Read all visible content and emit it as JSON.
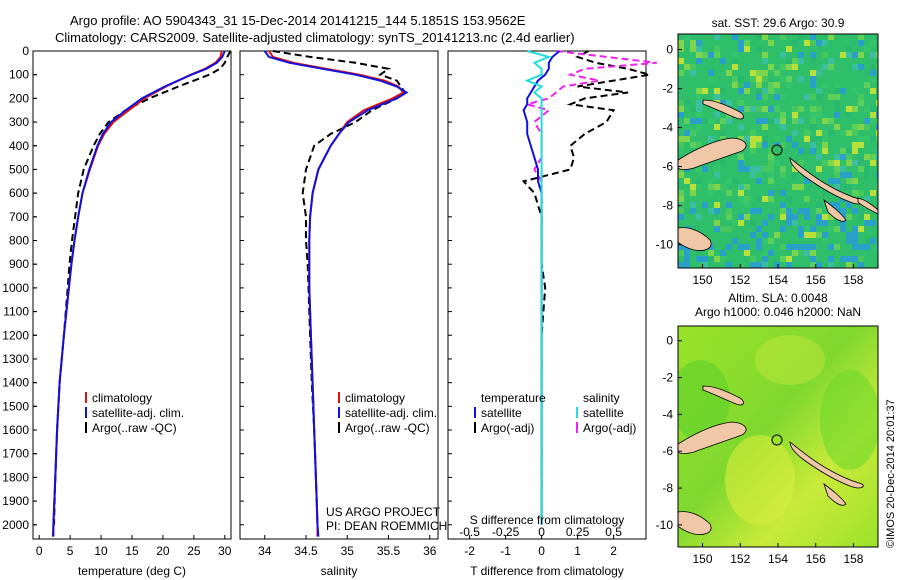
{
  "title": {
    "line1": "Argo profile: AO 5904343_31 15-Dec-2014 20141215_144 5.1851S 153.9562E",
    "line2": "Climatology: CARS2009. Satellite-adjusted climatology: synTS_20141213.nc (2.4d earlier)"
  },
  "depth_ticks": [
    "0",
    "100",
    "200",
    "300",
    "400",
    "500",
    "600",
    "700",
    "800",
    "900",
    "1000",
    "1100",
    "1200",
    "1300",
    "1400",
    "1500",
    "1600",
    "1700",
    "1800",
    "1900",
    "2000"
  ],
  "credits": {
    "project": "US ARGO PROJECT",
    "pi": "PI: DEAN ROEMMICH"
  },
  "watermark": "©IMOS 20-Dec-2014 20:01:37",
  "legend_temp": {
    "items": [
      "climatology",
      "satellite-adj. clim.",
      "Argo(..raw -QC)"
    ]
  },
  "legend_sal": {
    "items": [
      "climatology",
      "satellite-adj. clim.",
      "Argo(..raw -QC)"
    ]
  },
  "legend_diff": {
    "temp_header": "temperature",
    "sal_header": "salinity",
    "temp_items": [
      "satellite",
      "Argo(-adj)"
    ],
    "sal_items": [
      "satellite",
      "Argo(-adj)"
    ]
  },
  "colors": {
    "climatology": "#dd1111",
    "satellite": "#1111dd",
    "argo": "#000000",
    "sal_satellite": "#22dddd",
    "sal_argo": "#ee22ee",
    "land": "#f0c8a8"
  },
  "map_sst": {
    "title": "sat. SST: 29.6 Argo: 30.9",
    "xticks": [
      "150",
      "152",
      "154",
      "156",
      "158"
    ],
    "yticks": [
      "0",
      "-2",
      "-4",
      "-6",
      "-8",
      "-10"
    ]
  },
  "map_sla": {
    "title_line1": "Altim. SLA: 0.0048",
    "title_line2": "Argo h1000: 0.046 h2000: NaN",
    "xticks": [
      "150",
      "152",
      "154",
      "156",
      "158"
    ],
    "yticks": [
      "0",
      "-2",
      "-4",
      "-6",
      "-8",
      "-10"
    ]
  },
  "chart_data": [
    {
      "type": "line",
      "name": "temperature profile",
      "xlabel": "temperature (deg C)",
      "xlim": [
        -1,
        31
      ],
      "ylim": [
        2060,
        0
      ],
      "xticks": [
        "0",
        "5",
        "10",
        "15",
        "20",
        "25",
        "30"
      ],
      "depth": [
        0,
        25,
        50,
        75,
        100,
        150,
        200,
        250,
        300,
        350,
        400,
        500,
        600,
        700,
        800,
        900,
        1000,
        1200,
        1400,
        1600,
        1800,
        2000,
        2050
      ],
      "series": [
        {
          "name": "climatology",
          "values": [
            29.5,
            29.3,
            28.5,
            26.8,
            24.5,
            20.5,
            17.0,
            14.5,
            12.0,
            10.5,
            9.5,
            8.2,
            7.0,
            6.3,
            5.7,
            5.2,
            4.8,
            4.0,
            3.3,
            2.9,
            2.6,
            2.3,
            2.2
          ]
        },
        {
          "name": "satellite-adj. clim.",
          "values": [
            30.0,
            29.6,
            28.7,
            27.0,
            24.6,
            20.3,
            16.6,
            14.0,
            11.6,
            10.3,
            9.4,
            8.1,
            7.0,
            6.3,
            5.7,
            5.2,
            4.8,
            4.0,
            3.3,
            2.9,
            2.6,
            2.3,
            2.3
          ]
        },
        {
          "name": "Argo(..raw -QC)",
          "values": [
            30.9,
            30.4,
            30.0,
            29.2,
            27.5,
            22.5,
            17.8,
            14.0,
            11.2,
            9.8,
            8.8,
            7.2,
            6.3,
            5.8,
            5.3,
            4.9,
            4.6,
            4.0,
            3.3,
            2.9,
            2.6,
            2.4
          ]
        }
      ]
    },
    {
      "type": "line",
      "name": "salinity profile",
      "xlabel": "salinity",
      "xlim": [
        33.7,
        36.1
      ],
      "ylim": [
        2060,
        0
      ],
      "xticks": [
        "34",
        "34.5",
        "35",
        "35.5",
        "36"
      ],
      "depth": [
        0,
        25,
        50,
        75,
        100,
        125,
        150,
        175,
        200,
        250,
        300,
        350,
        400,
        500,
        600,
        700,
        800,
        900,
        1000,
        1200,
        1400,
        1600,
        1800,
        2000,
        2050
      ],
      "series": [
        {
          "name": "climatology",
          "values": [
            34.05,
            34.1,
            34.35,
            34.75,
            35.15,
            35.45,
            35.62,
            35.68,
            35.55,
            35.2,
            35.0,
            34.9,
            34.8,
            34.65,
            34.58,
            34.55,
            34.54,
            34.54,
            34.54,
            34.56,
            34.58,
            34.6,
            34.62,
            34.64,
            34.64
          ]
        },
        {
          "name": "satellite-adj. clim.",
          "values": [
            34.0,
            34.05,
            34.3,
            34.7,
            35.1,
            35.4,
            35.6,
            35.72,
            35.6,
            35.25,
            35.02,
            34.9,
            34.8,
            34.65,
            34.58,
            34.55,
            34.54,
            34.54,
            34.54,
            34.56,
            34.58,
            34.6,
            34.62,
            34.64,
            34.65
          ]
        },
        {
          "name": "Argo(..raw -QC)",
          "values": [
            34.1,
            34.55,
            35.1,
            35.5,
            35.4,
            35.6,
            35.65,
            35.7,
            35.6,
            35.3,
            35.1,
            34.8,
            34.6,
            34.5,
            34.46,
            34.5,
            34.5,
            34.52,
            34.53,
            34.55,
            34.57,
            34.6,
            34.62,
            34.64
          ]
        }
      ]
    },
    {
      "type": "line",
      "name": "difference from climatology",
      "xlabel": "T difference from climatology",
      "xlabel_top": "S difference from climatology",
      "xlim": [
        -2.6,
        2.9
      ],
      "ylim": [
        2060,
        0
      ],
      "xticks": [
        "-2",
        "-1",
        "0",
        "1",
        "2"
      ],
      "sticks": [
        "-0.5",
        "-0.25",
        "0",
        "0.25",
        "0.5"
      ],
      "depth": [
        0,
        25,
        50,
        75,
        100,
        125,
        150,
        175,
        200,
        225,
        250,
        300,
        350,
        400,
        450,
        500,
        550,
        600,
        650,
        700,
        800,
        900,
        1000,
        1200,
        1400,
        1600,
        1800,
        2000
      ],
      "series": [
        {
          "name": "satellite",
          "values": [
            0.5,
            0.3,
            0.2,
            0.2,
            0.1,
            -0.1,
            -0.2,
            -0.3,
            -0.4,
            -0.4,
            -0.5,
            -0.4,
            -0.4,
            -0.3,
            -0.2,
            -0.1,
            -0.1,
            0.0,
            0.0,
            0.0,
            0.0,
            0.0,
            0.0,
            0.0,
            0.0,
            0.0,
            0.0,
            0.0
          ]
        },
        {
          "name": "Argo(-adj)",
          "values": [
            1.3,
            1.0,
            1.5,
            2.4,
            3.0,
            2.0,
            1.0,
            2.4,
            1.2,
            0.8,
            2.0,
            1.8,
            1.2,
            0.8,
            0.9,
            0.8,
            -0.5,
            -0.2,
            -0.1,
            0.0,
            0.0,
            0.0,
            0.1,
            0.0,
            0.0,
            0.0,
            0.0,
            0.0
          ]
        },
        {
          "name": "salinity satellite",
          "values": [
            -0.1,
            0.05,
            -0.05,
            0.0,
            0.0,
            -0.1,
            0.0,
            -0.05,
            0.0,
            0.0,
            0.0,
            0.0,
            0.0,
            0.0,
            0.0,
            0.0,
            0.0,
            0.0,
            0.0,
            0.0,
            0.0,
            0.0,
            0.0,
            0.0,
            0.0,
            0.0,
            0.0,
            0.0
          ]
        },
        {
          "name": "salinity Argo(-adj)",
          "values": [
            0.1,
            0.45,
            0.8,
            0.3,
            0.2,
            0.4,
            0.15,
            0.1,
            0.05,
            -0.1,
            0.05,
            -0.05,
            0.0,
            0.0,
            0.0,
            -0.05,
            0.0,
            0.0,
            0.0,
            0.0,
            0.0,
            0.0,
            0.0,
            0.0,
            0.0,
            0.0,
            0.0,
            0.0
          ]
        }
      ]
    }
  ]
}
